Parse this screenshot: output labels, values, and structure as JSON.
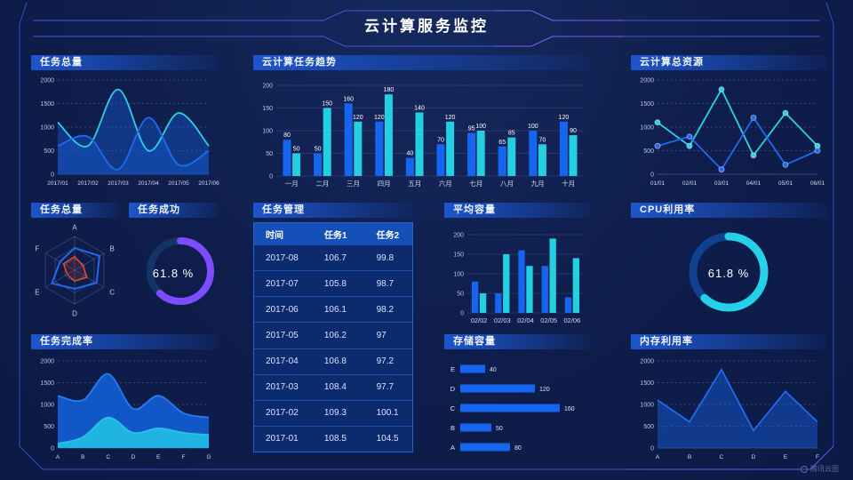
{
  "header": {
    "title": "云计算服务监控"
  },
  "watermark": {
    "label": "腾讯云图"
  },
  "chart_data": [
    {
      "id": "task_total_line",
      "type": "line",
      "title": "任务总量",
      "smooth": true,
      "grid": "dashed",
      "x": [
        "2017/01",
        "2017/02",
        "2017/03",
        "2017/04",
        "2017/05",
        "2017/06"
      ],
      "ylim": [
        0,
        2000
      ],
      "yticks": [
        0,
        500,
        1000,
        1500,
        2000
      ],
      "series": [
        {
          "name": "series-cyan",
          "color": "#2bd2e6",
          "fill": "rgba(21,90,210,0.42)",
          "values": [
            1100,
            600,
            1800,
            500,
            1300,
            600
          ]
        },
        {
          "name": "series-blue",
          "color": "#1f6af2",
          "fill": "rgba(21,90,210,0.42)",
          "values": [
            600,
            800,
            100,
            1200,
            200,
            500
          ]
        }
      ]
    },
    {
      "id": "cloud_task_trend",
      "type": "bar",
      "title": "云计算任务趋势",
      "value_labels": true,
      "categories": [
        "一月",
        "二月",
        "三月",
        "四月",
        "五月",
        "六月",
        "七月",
        "八月",
        "九月",
        "十月"
      ],
      "ylim": [
        0,
        200
      ],
      "yticks": [
        0,
        50,
        100,
        150,
        200
      ],
      "series": [
        {
          "name": "任务1",
          "color": "#1565f0",
          "values": [
            80,
            50,
            160,
            120,
            40,
            70,
            95,
            65,
            100,
            120
          ]
        },
        {
          "name": "任务2",
          "color": "#23cfe0",
          "values": [
            50,
            150,
            120,
            180,
            140,
            120,
            100,
            85,
            70,
            90
          ]
        }
      ]
    },
    {
      "id": "cloud_total_resource",
      "type": "line",
      "title": "云计算总资源",
      "smooth": false,
      "markers": true,
      "grid": "dashed",
      "x": [
        "01/01",
        "02/01",
        "03/01",
        "04/01",
        "05/01",
        "06/01"
      ],
      "ylim": [
        0,
        2000
      ],
      "yticks": [
        0,
        500,
        1000,
        1500,
        2000
      ],
      "series": [
        {
          "name": "series-cyan",
          "color": "#2bd2e6",
          "values": [
            1100,
            600,
            1800,
            400,
            1300,
            600
          ]
        },
        {
          "name": "series-blue",
          "color": "#1f6af2",
          "values": [
            600,
            800,
            100,
            1200,
            200,
            500
          ]
        }
      ]
    },
    {
      "id": "task_radar",
      "type": "radar",
      "title": "任务总量",
      "max": 100,
      "axes": [
        "A",
        "B",
        "C",
        "D",
        "E",
        "F"
      ],
      "series": [
        {
          "name": "blue",
          "color": "#1f6af2",
          "values": [
            66,
            85,
            75,
            55,
            78,
            50
          ]
        },
        {
          "name": "red",
          "color": "#e84a2d",
          "values": [
            40,
            28,
            42,
            32,
            25,
            38
          ]
        }
      ]
    },
    {
      "id": "task_success",
      "type": "donut",
      "title": "任务成功",
      "percent": 61.8,
      "label": "61.8 %",
      "color": "#7c4dff",
      "track": "#153367"
    },
    {
      "id": "task_management",
      "type": "table",
      "title": "任务管理",
      "headers": [
        "时间",
        "任务1",
        "任务2"
      ],
      "rows": [
        [
          "2017-08",
          "106.7",
          "99.8"
        ],
        [
          "2017-07",
          "105.8",
          "98.7"
        ],
        [
          "2017-06",
          "106.1",
          "98.2"
        ],
        [
          "2017-05",
          "106.2",
          "97"
        ],
        [
          "2017-04",
          "106.8",
          "97.2"
        ],
        [
          "2017-03",
          "108.4",
          "97.7"
        ],
        [
          "2017-02",
          "109.3",
          "100.1"
        ],
        [
          "2017-01",
          "108.5",
          "104.5"
        ]
      ]
    },
    {
      "id": "avg_capacity",
      "type": "bar",
      "title": "平均容量",
      "value_labels": false,
      "categories": [
        "02/02",
        "02/03",
        "02/04",
        "02/05",
        "02/06"
      ],
      "ylim": [
        0,
        200
      ],
      "yticks": [
        0,
        50,
        100,
        150,
        200
      ],
      "series": [
        {
          "name": "blue",
          "color": "#1565f0",
          "values": [
            80,
            50,
            160,
            120,
            40
          ]
        },
        {
          "name": "cyan",
          "color": "#23cfe0",
          "values": [
            50,
            150,
            120,
            190,
            140
          ]
        }
      ]
    },
    {
      "id": "cpu_usage",
      "type": "donut",
      "title": "CPU利用率",
      "percent": 61.8,
      "label": "61.8 %",
      "color": "#25d0e8",
      "track": "#10418e"
    },
    {
      "id": "task_completion",
      "type": "area",
      "title": "任务完成率",
      "smooth": true,
      "grid": "dashed",
      "x": [
        "A",
        "B",
        "C",
        "D",
        "E",
        "F",
        "G"
      ],
      "ylim": [
        0,
        2000
      ],
      "yticks": [
        0,
        500,
        1000,
        1500,
        2000
      ],
      "series": [
        {
          "name": "outer-blue",
          "color": "#2a7bf0",
          "fill": "#1257c8",
          "values": [
            1200,
            1100,
            1700,
            900,
            1200,
            800,
            700
          ]
        },
        {
          "name": "inner-cyan",
          "color": "#29c0e8",
          "fill": "#1fb4e2",
          "values": [
            100,
            250,
            700,
            350,
            450,
            350,
            300
          ]
        }
      ]
    },
    {
      "id": "storage_capacity",
      "type": "hbar",
      "title": "存储容量",
      "max": 170,
      "color": "#1565f0",
      "categories": [
        "E",
        "D",
        "C",
        "B",
        "A"
      ],
      "values": [
        40,
        120,
        160,
        50,
        80
      ]
    },
    {
      "id": "memory_usage",
      "type": "line",
      "title": "内存利用率",
      "smooth": false,
      "grid": "dashed",
      "x": [
        "A",
        "B",
        "C",
        "D",
        "E",
        "F"
      ],
      "ylim": [
        0,
        2000
      ],
      "yticks": [
        0,
        500,
        1000,
        1500,
        2000
      ],
      "series": [
        {
          "name": "blue",
          "color": "#1f6af2",
          "fill": "rgba(21,90,210,0.5)",
          "values": [
            1100,
            600,
            1800,
            400,
            1300,
            600
          ]
        }
      ]
    }
  ]
}
